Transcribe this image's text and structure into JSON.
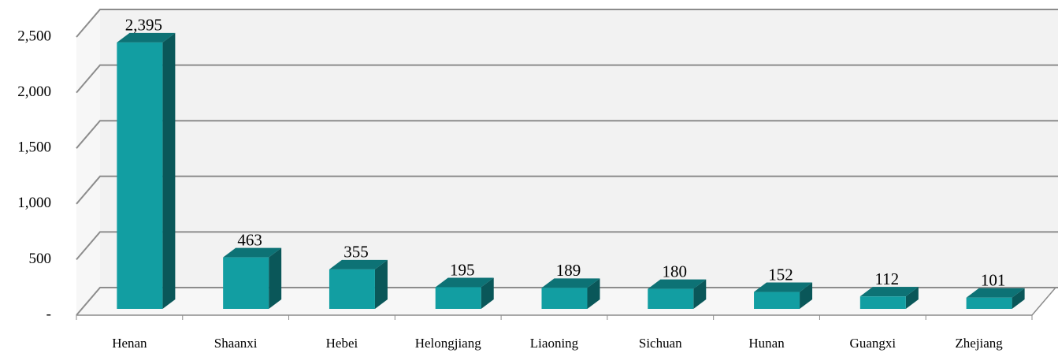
{
  "chart_data": {
    "type": "bar3d",
    "categories": [
      "Henan",
      "Shaanxi",
      "Hebei",
      "Helongjiang",
      "Liaoning",
      "Sichuan",
      "Hunan",
      "Guangxi",
      "Zhejiang"
    ],
    "values": [
      2395,
      463,
      355,
      195,
      189,
      180,
      152,
      112,
      101
    ],
    "value_labels": [
      "2,395",
      "463",
      "355",
      "195",
      "189",
      "180",
      "152",
      "112",
      "101"
    ],
    "color": "#129ea2",
    "ylim": [
      0,
      2500
    ],
    "yticks": [
      {
        "value": 0,
        "label": "-"
      },
      500,
      {
        "value": 1000,
        "label": "1,000"
      },
      {
        "value": 1500,
        "label": "1,500"
      },
      {
        "value": 2000,
        "label": "2,000"
      },
      {
        "value": 2500,
        "label": "2,500"
      }
    ],
    "grid": true
  }
}
